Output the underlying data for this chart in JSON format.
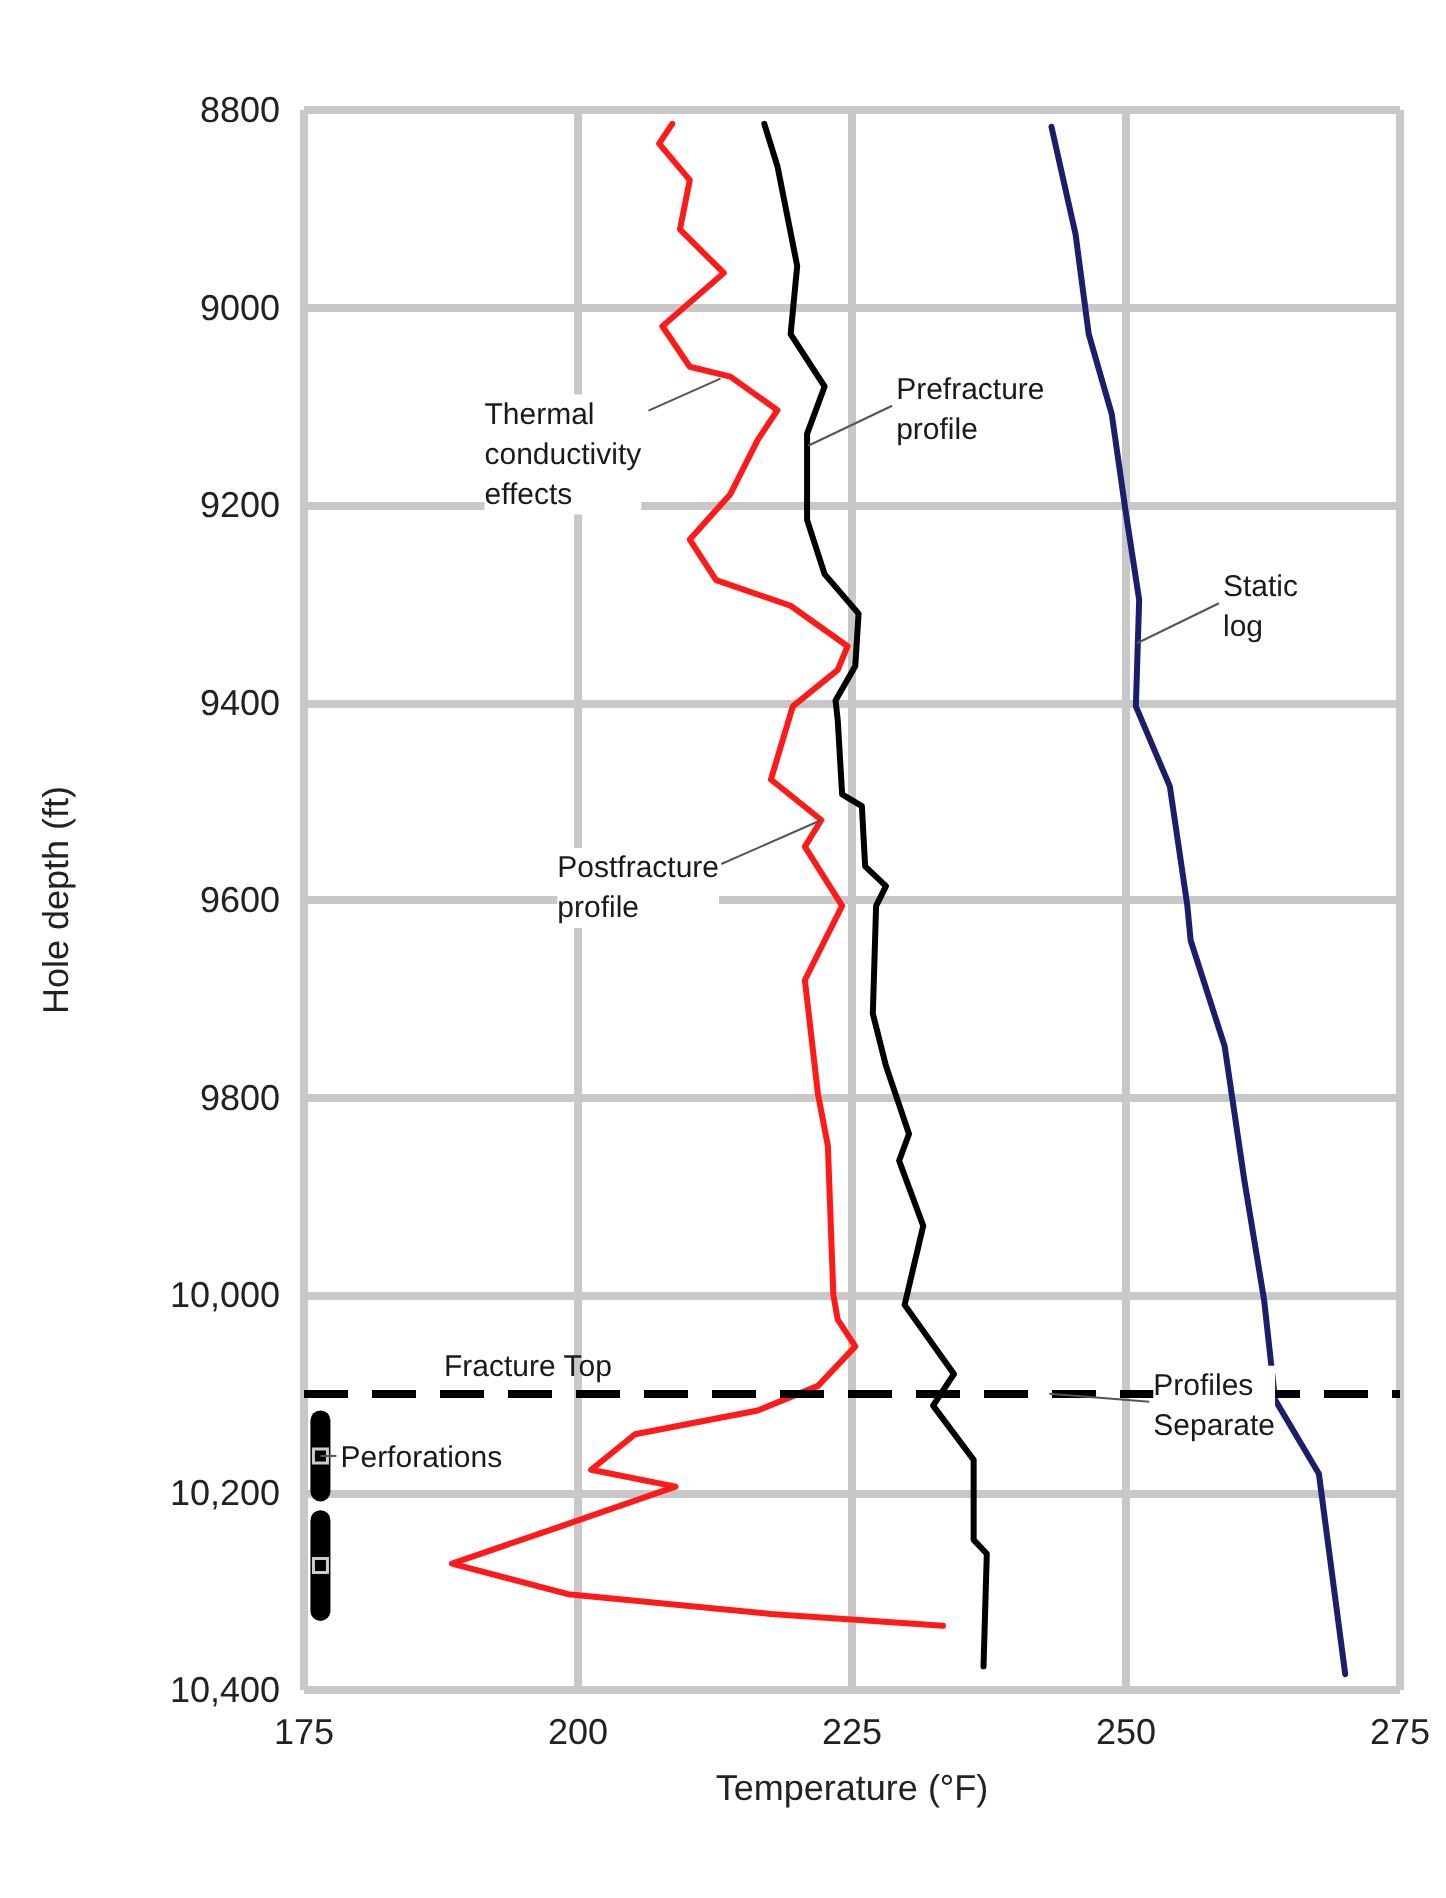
{
  "chart_data": {
    "type": "line",
    "xlabel": "Temperature (°F)",
    "ylabel": "Hole depth (ft)",
    "xlim": [
      175,
      275
    ],
    "xticks": [
      175,
      200,
      225,
      250,
      275
    ],
    "ylim": [
      10400,
      8800
    ],
    "yticks": [
      8800,
      9000,
      9200,
      9400,
      9600,
      9800,
      {
        "value": 10000,
        "label": "10,000"
      },
      {
        "value": 10200,
        "label": "10,200"
      },
      {
        "value": 10400,
        "label": "10,400"
      }
    ],
    "grid": true,
    "marker": "none",
    "line_style": "solid",
    "series": [
      {
        "color": "#ff1a1a",
        "x": [
          208.6,
          207.4,
          210.2,
          209.3,
          213.3,
          207.7,
          210.2,
          213.9,
          218.2,
          216.4,
          213.9,
          210.2,
          212.6,
          219.4,
          224.6,
          223.7,
          219.6,
          217.6,
          222.2,
          220.7,
          224.1,
          220.7,
          221.9,
          222.8,
          223.3,
          223.7,
          225.3,
          221.9,
          216.4,
          205.2,
          201.2,
          208.9,
          198.5,
          188.5,
          199.1,
          217.6,
          233.3
        ],
        "values": [
          8814,
          8834,
          8871,
          8921,
          8965,
          9019,
          9060,
          9070,
          9104,
          9134,
          9189,
          9235,
          9276,
          9302,
          9343,
          9367,
          9404,
          9478,
          9519,
          9546,
          9606,
          9681,
          9797,
          9849,
          10000,
          10025,
          10052,
          10092,
          10117,
          10141,
          10177,
          10194,
          10234,
          10272,
          10303,
          10323,
          10335
        ]
      },
      {
        "color": "#000000",
        "x": [
          217,
          218.2,
          220,
          219.4,
          222.5,
          220.9,
          220.9,
          222.5,
          225.6,
          225.3,
          223.5,
          223.7,
          224.1,
          225.9,
          226.2,
          228.1,
          227.2,
          226.9,
          228.1,
          230.2,
          229.3,
          231.5,
          229.8,
          234.3,
          232.4,
          236.1,
          236.1,
          237.3,
          237
        ],
        "values": [
          8814,
          8857,
          8958,
          9027,
          9080,
          9128,
          9215,
          9270,
          9310,
          9363,
          9398,
          9418,
          9493,
          9505,
          9566,
          9586,
          9606,
          9715,
          9768,
          9837,
          9864,
          9930,
          10010,
          10080,
          10112,
          10167,
          10248,
          10262,
          10376
        ]
      },
      {
        "type": "scatter",
        "marker": "square",
        "color": "#000000",
        "x": [
          176.5,
          176.5
        ],
        "values": [
          10163,
          10274
        ],
        "errors": [
          36,
          46
        ]
      },
      {
        "color": "#1b1f6b",
        "x": [
          243.2,
          245.4,
          246.6,
          248.7,
          250,
          251.2,
          250.9,
          254,
          255.6,
          255.9,
          259,
          260.8,
          262.6,
          263.6,
          267.6,
          270
        ],
        "values": [
          8817,
          8926,
          9027,
          9108,
          9209,
          9296,
          9404,
          9485,
          9606,
          9641,
          9748,
          9884,
          10005,
          10106,
          10181,
          10384
        ]
      }
    ],
    "ref_lines": [
      {
        "axis": "y",
        "value": 10100,
        "label": "Fracture Top",
        "color": "#000000",
        "line_style": "dashed"
      }
    ],
    "annotations": [
      {
        "text": "Thermal\nconductivity\neffects",
        "x": 213,
        "y": 9072
      },
      {
        "text": "Prefracture\nprofile",
        "x": 221,
        "y": 9140
      },
      {
        "text": "Static\nlog",
        "x": 251,
        "y": 9340
      },
      {
        "text": "Postfracture\nprofile",
        "x": 222.2,
        "y": 9519
      },
      {
        "text": "Profiles\nSeparate",
        "x": 243,
        "y": 10100
      },
      {
        "text": "Perforations",
        "x": 176.5,
        "y": 10163
      }
    ]
  }
}
